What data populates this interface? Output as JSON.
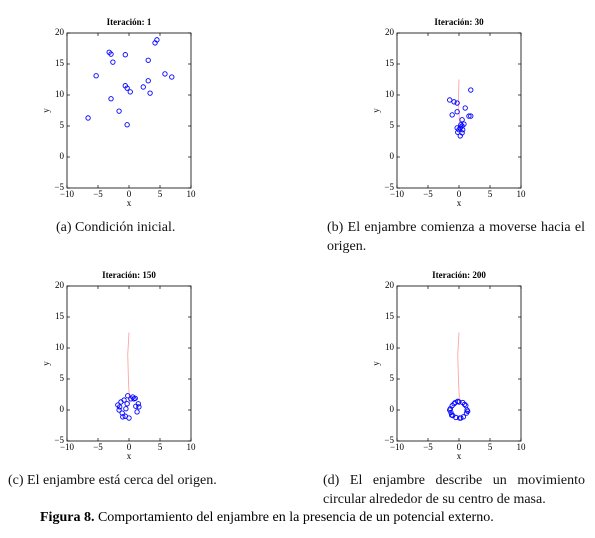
{
  "chart_data": [
    {
      "type": "scatter",
      "title": "Iteración: 1",
      "xlabel": "x",
      "ylabel": "y",
      "caption": "(a)  Condición inicial.",
      "color": "#0000ff",
      "x": [
        -6.6,
        -5.3,
        -3.2,
        -2.9,
        -0.6,
        -2.6,
        -2.9,
        -1.6,
        -0.6,
        -0.3,
        0.2,
        -0.3,
        2.3,
        3.1,
        3.1,
        3.4,
        4.2,
        4.5,
        5.8,
        6.9
      ],
      "y": [
        6.3,
        13.1,
        16.9,
        16.6,
        16.5,
        15.3,
        9.4,
        7.4,
        11.5,
        11.1,
        10.5,
        5.2,
        11.3,
        15.6,
        12.3,
        10.3,
        18.4,
        18.9,
        13.4,
        12.9
      ],
      "xlim": [
        -10,
        10
      ],
      "ylim": [
        -5,
        20
      ],
      "xticks": [
        {
          "value": -10,
          "label": "−10"
        },
        {
          "value": -5,
          "label": "−5"
        },
        0,
        5,
        10
      ],
      "yticks": [
        {
          "value": -5,
          "label": "−5"
        },
        0,
        5,
        10,
        15,
        20
      ]
    },
    {
      "type": "scatter",
      "title": "Iteración: 30",
      "xlabel": "x",
      "ylabel": "y",
      "caption": "(b)  El enjambre comienza a moverse hacia el origen.",
      "color": "#0000ff",
      "x": [
        -1.5,
        -0.8,
        -0.3,
        1.9,
        1.0,
        -1.1,
        -0.3,
        1.6,
        1.9,
        0.5,
        0.5,
        0.2,
        0.0,
        0.6,
        -0.2,
        0.5,
        0.2,
        0.3,
        -0.3,
        0.8
      ],
      "y": [
        9.2,
        8.9,
        8.7,
        10.8,
        7.9,
        6.8,
        7.3,
        6.6,
        6.6,
        6.0,
        5.0,
        4.7,
        4.4,
        4.4,
        4.0,
        3.9,
        3.4,
        5.2,
        4.7,
        5.3
      ],
      "trail": {
        "x": [
          0,
          -0.1,
          0.1
        ],
        "y": [
          12.5,
          9,
          5
        ],
        "color": "#ff9999"
      },
      "xlim": [
        -10,
        10
      ],
      "ylim": [
        -5,
        20
      ],
      "xticks": [
        {
          "value": -10,
          "label": "−10"
        },
        {
          "value": -5,
          "label": "−5"
        },
        0,
        5,
        10
      ],
      "yticks": [
        {
          "value": -5,
          "label": "−5"
        },
        0,
        5,
        10,
        15,
        20
      ]
    },
    {
      "type": "scatter",
      "title": "Iteración: 150",
      "xlabel": "x",
      "ylabel": "y",
      "caption": "(c)  El enjambre está cerca del origen.",
      "color": "#0000ff",
      "x": [
        -1.3,
        -0.8,
        -1.8,
        -1.6,
        -1.1,
        -0.6,
        0.0,
        0.6,
        1.0,
        1.5,
        1.6,
        1.3,
        0.8,
        -1.5,
        -0.3,
        -0.5,
        0.3,
        -1.0,
        1.1,
        -0.2
      ],
      "y": [
        1.3,
        1.6,
        0.8,
        0.0,
        -0.5,
        -1.0,
        -1.3,
        2.1,
        1.9,
        1.0,
        0.5,
        -0.3,
        1.8,
        0.5,
        1.0,
        0.2,
        1.8,
        -1.1,
        0.6,
        2.3
      ],
      "trail": {
        "x": [
          0,
          -0.2,
          -0.1,
          0.1
        ],
        "y": [
          12.5,
          9,
          5,
          1
        ],
        "color": "#ff9999"
      },
      "xlim": [
        -10,
        10
      ],
      "ylim": [
        -5,
        20
      ],
      "xticks": [
        {
          "value": -10,
          "label": "−10"
        },
        {
          "value": -5,
          "label": "−5"
        },
        0,
        5,
        10
      ],
      "yticks": [
        {
          "value": -5,
          "label": "−5"
        },
        0,
        5,
        10,
        15,
        20
      ]
    },
    {
      "type": "scatter",
      "title": "Iteración: 200",
      "xlabel": "x",
      "ylabel": "y",
      "caption": "(d)  El enjambre describe un movimiento circular alrededor de su centro de masa.",
      "color": "#0000ff",
      "x": [
        1.3,
        1.1,
        0.6,
        0.0,
        -0.6,
        -1.1,
        -1.4,
        -1.3,
        -1.0,
        -0.5,
        0.1,
        0.7,
        1.2,
        -1.5,
        -1.2,
        0.9,
        -0.8,
        1.4,
        0.3,
        -0.2
      ],
      "y": [
        0.0,
        0.7,
        1.2,
        1.3,
        1.2,
        0.7,
        0.2,
        -0.4,
        -0.9,
        -1.2,
        -1.3,
        -1.1,
        -0.5,
        0.0,
        -0.8,
        0.9,
        1.0,
        -0.2,
        -1.3,
        1.4
      ],
      "trail": {
        "x": [
          0,
          -0.2,
          -0.1,
          0.1
        ],
        "y": [
          12.5,
          9,
          5,
          1
        ],
        "color": "#ff9999"
      },
      "xlim": [
        -10,
        10
      ],
      "ylim": [
        -5,
        20
      ],
      "xticks": [
        {
          "value": -10,
          "label": "−10"
        },
        {
          "value": -5,
          "label": "−5"
        },
        0,
        5,
        10
      ],
      "yticks": [
        {
          "value": -5,
          "label": "−5"
        },
        0,
        5,
        10,
        15,
        20
      ]
    }
  ],
  "figure": {
    "label": "Figura 8.",
    "caption": "Comportamiento del enjambre en la presencia de un potencial externo."
  }
}
